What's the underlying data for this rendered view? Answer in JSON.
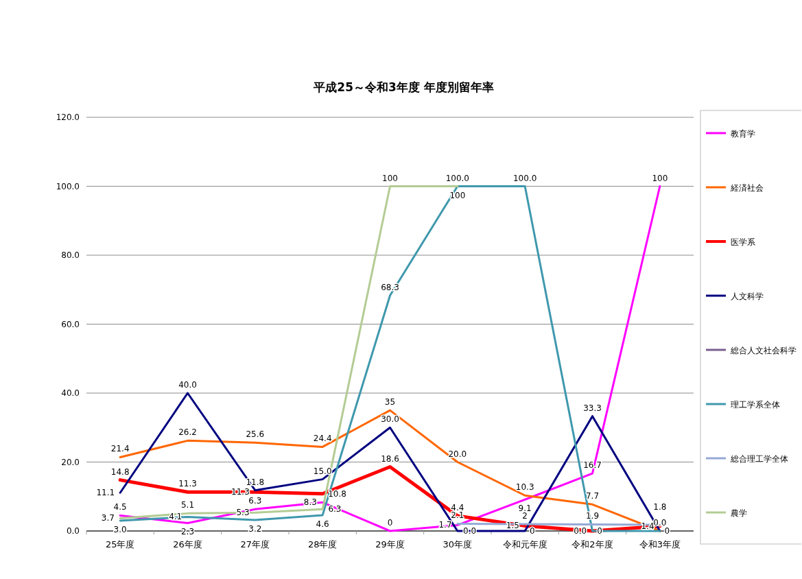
{
  "chart_data": {
    "type": "line",
    "title": "平成25～令和3年度  年度別留年率",
    "categories": [
      "25年度",
      "26年度",
      "27年度",
      "28年度",
      "29年度",
      "30年度",
      "令和元年度",
      "令和2年度",
      "令和3年度"
    ],
    "ylim": [
      0,
      120
    ],
    "yticks": [
      {
        "value": 0,
        "label": "0.0"
      },
      {
        "value": 20,
        "label": "20.0"
      },
      {
        "value": 40,
        "label": "40.0"
      },
      {
        "value": 60,
        "label": "60.0"
      },
      {
        "value": 80,
        "label": "80.0"
      },
      {
        "value": 100,
        "label": "100.0"
      },
      {
        "value": 120,
        "label": "120.0"
      }
    ],
    "grid": "y",
    "legend": "right",
    "marker": "none",
    "line_style": "solid",
    "data_labels": true,
    "series": [
      {
        "name": "教育学",
        "color": "#ff00ff",
        "values": [
          4.5,
          2.3,
          6.3,
          8.3,
          0,
          1.7,
          9.1,
          16.7,
          100
        ],
        "value_labels": [
          "4.5",
          "2.3",
          "6.3",
          "8.3",
          "0",
          "1.7",
          "9.1",
          "16.7",
          "100"
        ]
      },
      {
        "name": "経済社会",
        "color": "#ff6600",
        "values": [
          21.4,
          26.2,
          25.6,
          24.4,
          35,
          20.0,
          10.3,
          7.7,
          0
        ],
        "value_labels": [
          "21.4",
          "26.2",
          "25.6",
          "24.4",
          "35",
          "20.0",
          "10.3",
          "7.7",
          null
        ]
      },
      {
        "name": "医学系",
        "color": "#ff0000",
        "values": [
          14.8,
          11.3,
          11.3,
          10.8,
          18.6,
          4.4,
          1.5,
          0.0,
          1.4
        ],
        "value_labels": [
          "14.8",
          "11.3",
          "11.3",
          "10.8",
          "18.6",
          "4.4",
          "1.5",
          "0.0",
          "1.4"
        ]
      },
      {
        "name": "人文科学",
        "color": "#000080",
        "values": [
          11.1,
          40.0,
          11.8,
          15.0,
          30.0,
          0.0,
          0,
          33.3,
          0
        ],
        "value_labels": [
          "11.1",
          "40.0",
          "11.8",
          "15.0",
          "30.0",
          "0.0",
          "0",
          "33.3",
          "0"
        ]
      },
      {
        "name": "総合人文社会科学",
        "color": "#7a5f8f",
        "values": [
          null,
          null,
          null,
          null,
          null,
          null,
          null,
          null,
          null
        ]
      },
      {
        "name": "理工学系全体",
        "color": "#3f98ad",
        "values": [
          3.0,
          4.1,
          3.2,
          4.6,
          68.3,
          100.0,
          100.0,
          0,
          0.0
        ],
        "value_labels": [
          "3.0",
          "4.1",
          "3.2",
          "4.6",
          "68.3",
          "100.0",
          "100.0",
          "0",
          "0.0"
        ]
      },
      {
        "name": "総合理工学全体",
        "color": "#94a9d6",
        "values": [
          null,
          null,
          null,
          null,
          null,
          2.1,
          2,
          1.9,
          1.8
        ],
        "value_labels": [
          null,
          null,
          null,
          null,
          null,
          "2.1",
          "2",
          "1.9",
          "1.8"
        ]
      },
      {
        "name": "農学",
        "color": "#b3cc94",
        "values": [
          3.7,
          5.1,
          5.3,
          6.3,
          100,
          100,
          null,
          null,
          null
        ],
        "value_labels": [
          "3.7",
          "5.1",
          "5.3",
          "6.3",
          "100",
          "100",
          null,
          null,
          null
        ]
      }
    ]
  }
}
